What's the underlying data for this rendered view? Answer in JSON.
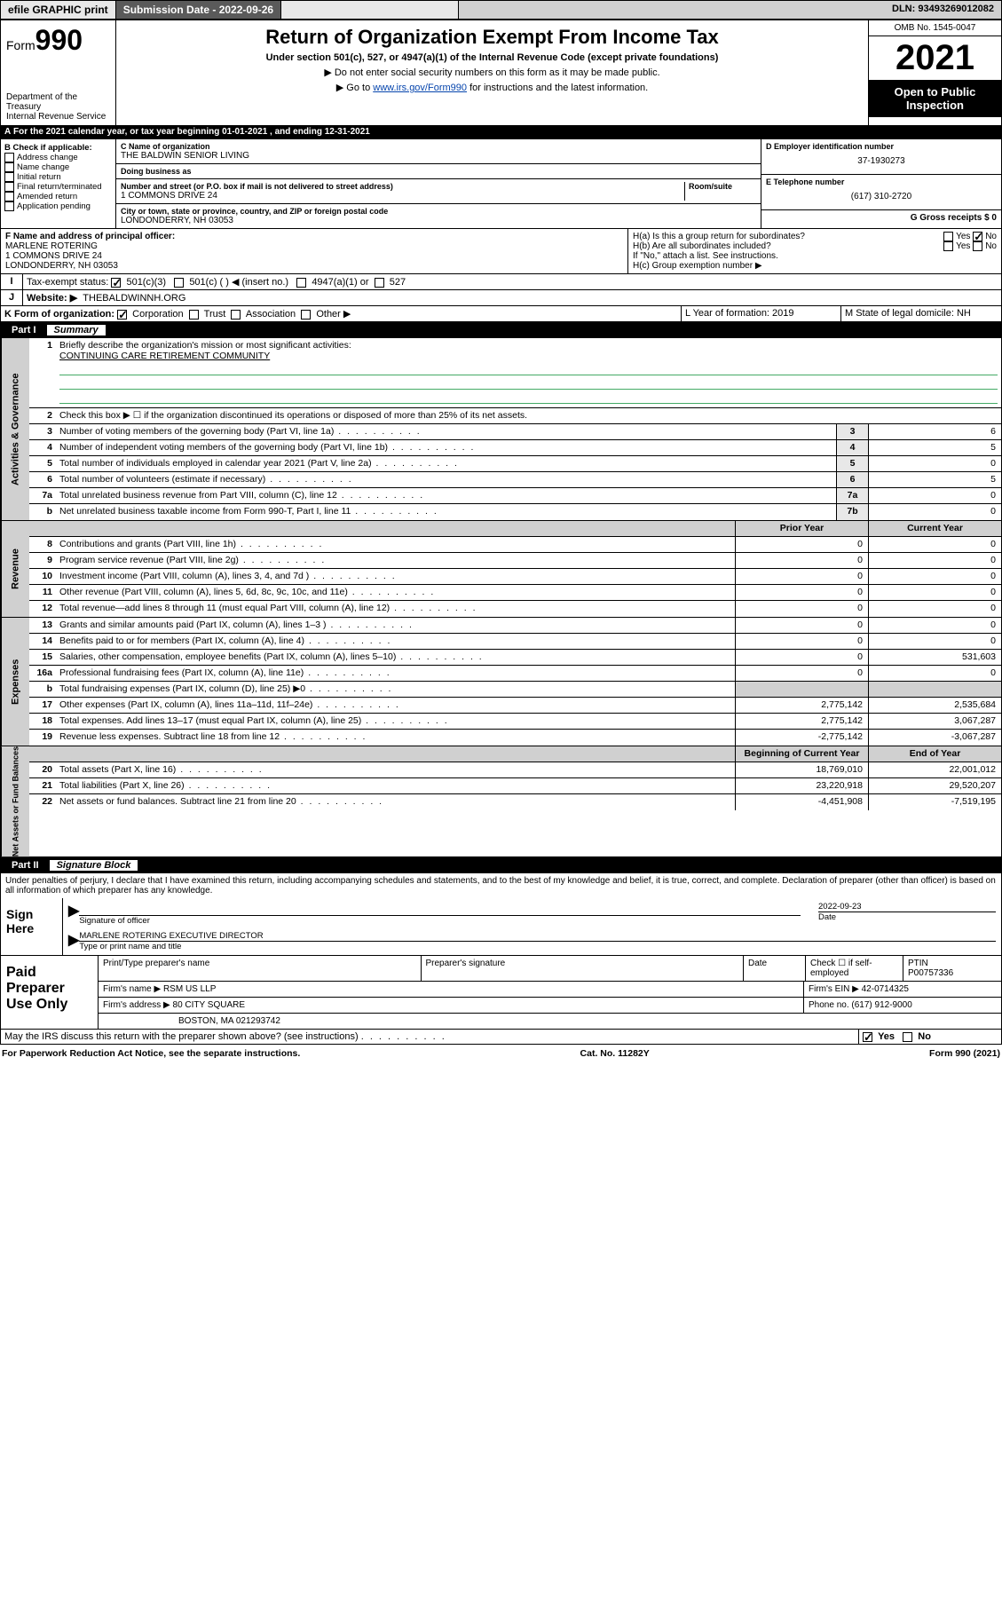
{
  "topbar": {
    "efile": "efile GRAPHIC print",
    "submission": "Submission Date - 2022-09-26",
    "dln": "DLN: 93493269012082"
  },
  "header": {
    "form_word": "Form",
    "form_num": "990",
    "dept": "Department of the Treasury",
    "irs": "Internal Revenue Service",
    "title": "Return of Organization Exempt From Income Tax",
    "subtitle": "Under section 501(c), 527, or 4947(a)(1) of the Internal Revenue Code (except private foundations)",
    "note1": "▶ Do not enter social security numbers on this form as it may be made public.",
    "note2_pre": "▶ Go to ",
    "note2_link": "www.irs.gov/Form990",
    "note2_post": " for instructions and the latest information.",
    "omb": "OMB No. 1545-0047",
    "year": "2021",
    "open": "Open to Public Inspection"
  },
  "line_a": "For the 2021 calendar year, or tax year beginning 01-01-2021   , and ending 12-31-2021",
  "col_b": {
    "label": "B Check if applicable:",
    "items": [
      "Address change",
      "Name change",
      "Initial return",
      "Final return/terminated",
      "Amended return",
      "Application pending"
    ]
  },
  "col_c": {
    "name_lbl": "C Name of organization",
    "name": "THE BALDWIN SENIOR LIVING",
    "dba_lbl": "Doing business as",
    "dba": "",
    "addr_lbl": "Number and street (or P.O. box if mail is not delivered to street address)",
    "room_lbl": "Room/suite",
    "addr": "1 COMMONS DRIVE 24",
    "city_lbl": "City or town, state or province, country, and ZIP or foreign postal code",
    "city": "LONDONDERRY, NH  03053"
  },
  "col_d": {
    "d_lbl": "D Employer identification number",
    "d_val": "37-1930273",
    "e_lbl": "E Telephone number",
    "e_val": "(617) 310-2720",
    "g_lbl": "G Gross receipts $ 0"
  },
  "row_f": {
    "f_lbl": "F Name and address of principal officer:",
    "f_name": "MARLENE ROTERING",
    "f_addr1": "1 COMMONS DRIVE 24",
    "f_addr2": "LONDONDERRY, NH  03053",
    "ha": "H(a)  Is this a group return for subordinates?",
    "hb": "H(b)  Are all subordinates included?",
    "hb_note": "If \"No,\" attach a list. See instructions.",
    "hc": "H(c)  Group exemption number ▶",
    "yes": "Yes",
    "no": "No"
  },
  "row_i": {
    "lbl": "Tax-exempt status:",
    "o1": "501(c)(3)",
    "o2": "501(c) (   ) ◀ (insert no.)",
    "o3": "4947(a)(1) or",
    "o4": "527"
  },
  "row_j": {
    "lbl": "Website: ▶",
    "val": "THEBALDWINNH.ORG"
  },
  "row_k": {
    "lbl": "K Form of organization:",
    "o1": "Corporation",
    "o2": "Trust",
    "o3": "Association",
    "o4": "Other ▶",
    "l_lbl": "L Year of formation: 2019",
    "m_lbl": "M State of legal domicile: NH"
  },
  "part1": {
    "num": "Part I",
    "title": "Summary"
  },
  "summary": {
    "l1": "Briefly describe the organization's mission or most significant activities:",
    "l1val": "CONTINUING CARE RETIREMENT COMMUNITY",
    "l2": "Check this box ▶ ☐ if the organization discontinued its operations or disposed of more than 25% of its net assets.",
    "prior": "Prior Year",
    "current": "Current Year",
    "beg": "Beginning of Current Year",
    "end": "End of Year"
  },
  "lines_gov": [
    {
      "n": "3",
      "t": "Number of voting members of the governing body (Part VI, line 1a)",
      "c": "3",
      "v": "6"
    },
    {
      "n": "4",
      "t": "Number of independent voting members of the governing body (Part VI, line 1b)",
      "c": "4",
      "v": "5"
    },
    {
      "n": "5",
      "t": "Total number of individuals employed in calendar year 2021 (Part V, line 2a)",
      "c": "5",
      "v": "0"
    },
    {
      "n": "6",
      "t": "Total number of volunteers (estimate if necessary)",
      "c": "6",
      "v": "5"
    },
    {
      "n": "7a",
      "t": "Total unrelated business revenue from Part VIII, column (C), line 12",
      "c": "7a",
      "v": "0"
    },
    {
      "n": "b",
      "t": "Net unrelated business taxable income from Form 990-T, Part I, line 11",
      "c": "7b",
      "v": "0"
    }
  ],
  "lines_rev": [
    {
      "n": "8",
      "t": "Contributions and grants (Part VIII, line 1h)",
      "p": "0",
      "v": "0"
    },
    {
      "n": "9",
      "t": "Program service revenue (Part VIII, line 2g)",
      "p": "0",
      "v": "0"
    },
    {
      "n": "10",
      "t": "Investment income (Part VIII, column (A), lines 3, 4, and 7d )",
      "p": "0",
      "v": "0"
    },
    {
      "n": "11",
      "t": "Other revenue (Part VIII, column (A), lines 5, 6d, 8c, 9c, 10c, and 11e)",
      "p": "0",
      "v": "0"
    },
    {
      "n": "12",
      "t": "Total revenue—add lines 8 through 11 (must equal Part VIII, column (A), line 12)",
      "p": "0",
      "v": "0"
    }
  ],
  "lines_exp": [
    {
      "n": "13",
      "t": "Grants and similar amounts paid (Part IX, column (A), lines 1–3 )",
      "p": "0",
      "v": "0"
    },
    {
      "n": "14",
      "t": "Benefits paid to or for members (Part IX, column (A), line 4)",
      "p": "0",
      "v": "0"
    },
    {
      "n": "15",
      "t": "Salaries, other compensation, employee benefits (Part IX, column (A), lines 5–10)",
      "p": "0",
      "v": "531,603"
    },
    {
      "n": "16a",
      "t": "Professional fundraising fees (Part IX, column (A), line 11e)",
      "p": "0",
      "v": "0"
    },
    {
      "n": "b",
      "t": "Total fundraising expenses (Part IX, column (D), line 25) ▶0",
      "p": "",
      "v": "",
      "grey": true
    },
    {
      "n": "17",
      "t": "Other expenses (Part IX, column (A), lines 11a–11d, 11f–24e)",
      "p": "2,775,142",
      "v": "2,535,684"
    },
    {
      "n": "18",
      "t": "Total expenses. Add lines 13–17 (must equal Part IX, column (A), line 25)",
      "p": "2,775,142",
      "v": "3,067,287"
    },
    {
      "n": "19",
      "t": "Revenue less expenses. Subtract line 18 from line 12",
      "p": "-2,775,142",
      "v": "-3,067,287"
    }
  ],
  "lines_net": [
    {
      "n": "20",
      "t": "Total assets (Part X, line 16)",
      "p": "18,769,010",
      "v": "22,001,012"
    },
    {
      "n": "21",
      "t": "Total liabilities (Part X, line 26)",
      "p": "23,220,918",
      "v": "29,520,207"
    },
    {
      "n": "22",
      "t": "Net assets or fund balances. Subtract line 21 from line 20",
      "p": "-4,451,908",
      "v": "-7,519,195"
    }
  ],
  "side_labels": {
    "gov": "Activities & Governance",
    "rev": "Revenue",
    "exp": "Expenses",
    "net": "Net Assets or Fund Balances"
  },
  "part2": {
    "num": "Part II",
    "title": "Signature Block"
  },
  "part2_text": "Under penalties of perjury, I declare that I have examined this return, including accompanying schedules and statements, and to the best of my knowledge and belief, it is true, correct, and complete. Declaration of preparer (other than officer) is based on all information of which preparer has any knowledge.",
  "sign": {
    "here": "Sign Here",
    "sig_lbl": "Signature of officer",
    "date": "2022-09-23",
    "date_lbl": "Date",
    "name": "MARLENE ROTERING  EXECUTIVE DIRECTOR",
    "name_lbl": "Type or print name and title"
  },
  "paid": {
    "title": "Paid Preparer Use Only",
    "c1": "Print/Type preparer's name",
    "c2": "Preparer's signature",
    "c3": "Date",
    "c4a": "Check ☐ if self-employed",
    "c4b": "PTIN",
    "c4c": "P00757336",
    "firm_lbl": "Firm's name   ▶",
    "firm": "RSM US LLP",
    "ein_lbl": "Firm's EIN ▶",
    "ein": "42-0714325",
    "addr_lbl": "Firm's address ▶",
    "addr1": "80 CITY SQUARE",
    "addr2": "BOSTON, MA  021293742",
    "phone_lbl": "Phone no.",
    "phone": "(617) 912-9000"
  },
  "discuss": "May the IRS discuss this return with the preparer shown above? (see instructions)",
  "footer": {
    "l": "For Paperwork Reduction Act Notice, see the separate instructions.",
    "m": "Cat. No. 11282Y",
    "r": "Form 990 (2021)"
  },
  "colors": {
    "bg_grey": "#d0d0d0",
    "bg_cell": "#e8e8e8",
    "link": "#0645ad",
    "writein": "#4a6"
  }
}
